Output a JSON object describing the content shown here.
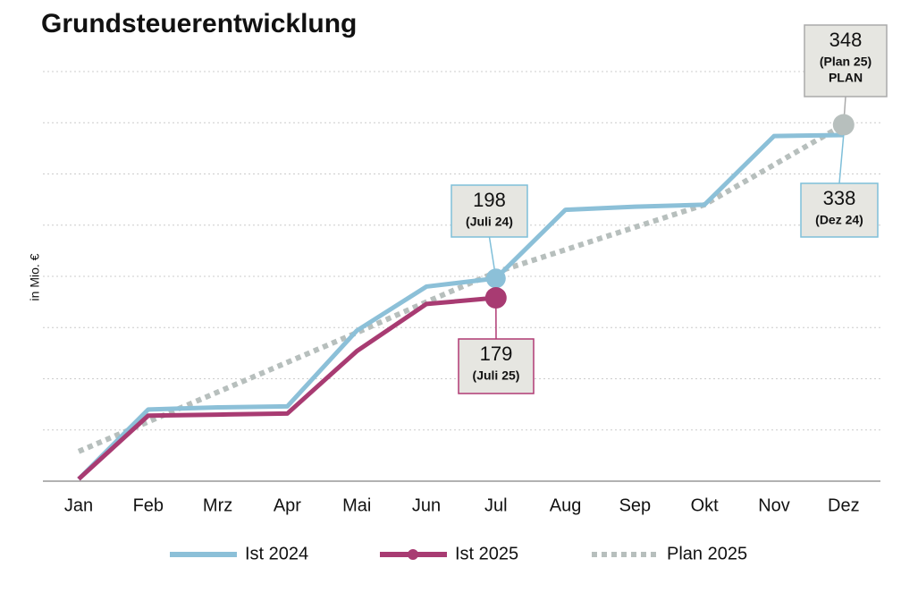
{
  "chart_data": {
    "type": "line",
    "title": "Grundsteuerentwicklung",
    "y_label": "in Mio. €",
    "categories": [
      "Jan",
      "Feb",
      "Mrz",
      "Apr",
      "Mai",
      "Jun",
      "Jul",
      "Aug",
      "Sep",
      "Okt",
      "Nov",
      "Dez"
    ],
    "series": [
      {
        "name": "Ist 2024",
        "color": "#8cc0d8",
        "style": "solid",
        "values": [
          2,
          70,
          72,
          73,
          147,
          190,
          198,
          265,
          268,
          270,
          337,
          338
        ]
      },
      {
        "name": "Ist 2025",
        "color": "#a83b72",
        "style": "solid",
        "values": [
          2,
          64,
          65,
          66,
          127,
          173,
          179,
          null,
          null,
          null,
          null,
          null
        ]
      },
      {
        "name": "Plan 2025",
        "color": "#b7bfbd",
        "style": "dotted",
        "values": [
          29,
          58,
          87,
          116,
          145,
          175,
          204,
          226,
          248,
          270,
          309,
          348
        ]
      }
    ],
    "annotations": [
      "(Juli 24)",
      "(Juli 25)",
      "(Plan 25)",
      "PLAN",
      "(Dez 24)"
    ],
    "ylim": [
      0,
      400
    ],
    "yticks": [
      0,
      50,
      100,
      150,
      200,
      250,
      300,
      350,
      400
    ],
    "grid": true,
    "legend": "bottom"
  }
}
